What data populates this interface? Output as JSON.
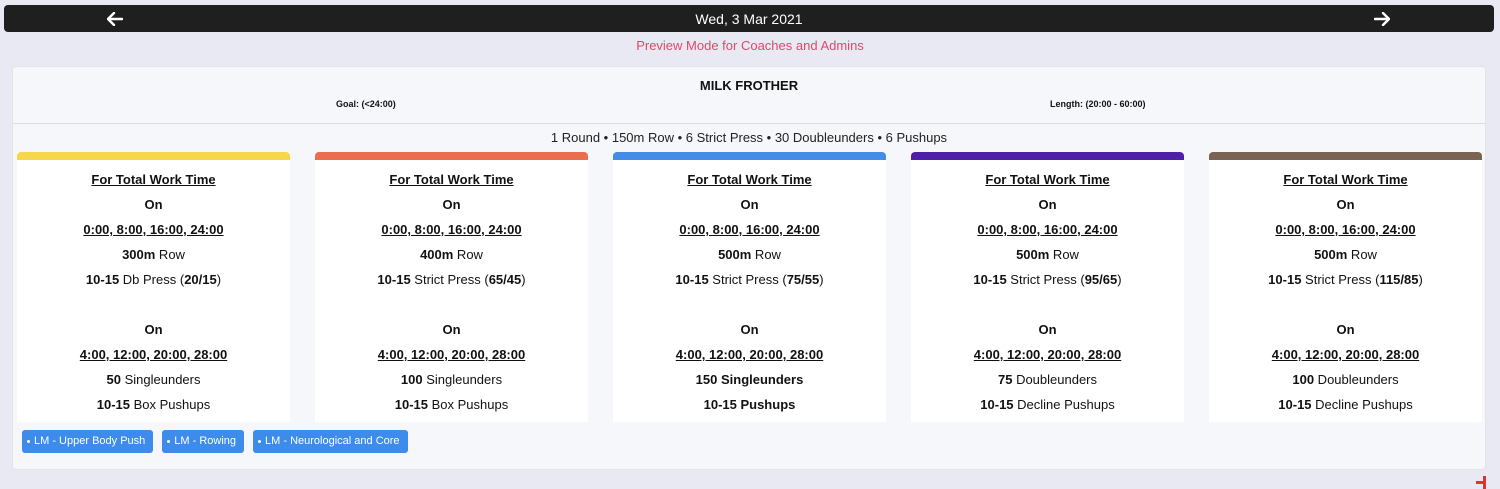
{
  "date_nav": {
    "date": "Wed, 3 Mar 2021",
    "prev_icon": "arrow-left-icon",
    "next_icon": "arrow-right-icon"
  },
  "preview_note": "Preview Mode for Coaches and Admins",
  "workout": {
    "title": "MILK FROTHER",
    "goal": "Goal: (<24:00)",
    "length": "Length: (20:00 - 60:00)",
    "summary": "1 Round • 150m Row • 6 Strict Press • 30 Doubleunders • 6 Pushups"
  },
  "colors": {
    "level_1": "#f6d64a",
    "level_2": "#e96d4e",
    "level_3": "#448ce8",
    "level_4": "#4f1fa8",
    "level_5": "#7a6352",
    "tag_bg": "#3d8cec",
    "preview_text": "#e0486b"
  },
  "levels": [
    {
      "title": "For Total Work Time ",
      "on1": "On",
      "times1": "0:00, 8:00, 16:00, 24:00",
      "l1_bold": "300m",
      "l1_text": " Row",
      "l2_bold": "10-15",
      "l2_text": " Db Press (",
      "l2_load": "20/15",
      "l2_close": ")",
      "on2": "On",
      "times2": "4:00, 12:00, 20:00, 28:00",
      "l3_bold": "50",
      "l3_text": " Singleunders",
      "l4_bold": "10-15",
      "l4_text": " Box Pushups"
    },
    {
      "title": "For Total Work Time ",
      "on1": "On",
      "times1": "0:00, 8:00, 16:00, 24:00",
      "l1_bold": "400m",
      "l1_text": " Row",
      "l2_bold": "10-15",
      "l2_text": " Strict Press (",
      "l2_load": "65/45",
      "l2_close": ")",
      "on2": "On",
      "times2": "4:00, 12:00, 20:00, 28:00",
      "l3_bold": "100",
      "l3_text": " Singleunders",
      "l4_bold": "10-15",
      "l4_text": " Box Pushups"
    },
    {
      "title": "For Total Work Time ",
      "on1": "On",
      "times1": "0:00, 8:00, 16:00, 24:00",
      "l1_bold": "500m",
      "l1_text": " Row",
      "l2_bold": "10-15",
      "l2_text": " Strict Press (",
      "l2_load": "75/55",
      "l2_close": ")",
      "on2": "On",
      "times2": "4:00, 12:00, 20:00, 28:00",
      "l3_bold": "150 Singleunders",
      "l3_text": "",
      "l4_bold": "10-15 Pushups",
      "l4_text": ""
    },
    {
      "title": "For Total Work Time ",
      "on1": "On",
      "times1": "0:00, 8:00, 16:00, 24:00",
      "l1_bold": "500m",
      "l1_text": " Row",
      "l2_bold": "10-15",
      "l2_text": " Strict Press (",
      "l2_load": "95/65",
      "l2_close": ")",
      "on2": "On",
      "times2": "4:00, 12:00, 20:00, 28:00",
      "l3_bold": "75",
      "l3_text": " Doubleunders",
      "l4_bold": "10-15",
      "l4_text": " Decline Pushups"
    },
    {
      "title": "For Total Work Time ",
      "on1": "On",
      "times1": "0:00, 8:00, 16:00, 24:00",
      "l1_bold": "500m",
      "l1_text": " Row",
      "l2_bold": "10-15",
      "l2_text": " Strict Press (",
      "l2_load": "115/85",
      "l2_close": ")",
      "on2": "On",
      "times2": "4:00, 12:00, 20:00, 28:00",
      "l3_bold": "100",
      "l3_text": " Doubleunders",
      "l4_bold": "10-15",
      "l4_text": " Decline Pushups"
    }
  ],
  "tags": [
    "LM - Upper Body Push",
    "LM - Rowing",
    "LM - Neurological and Core"
  ]
}
